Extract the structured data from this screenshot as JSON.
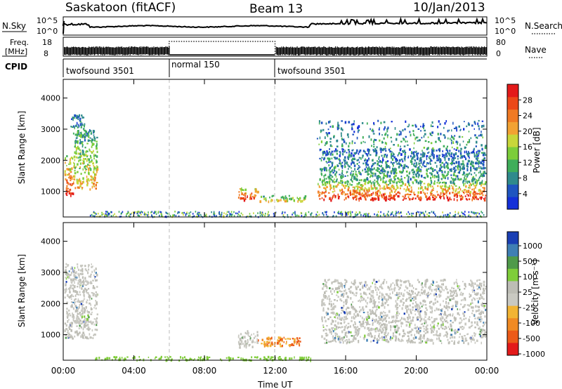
{
  "header": {
    "station": "Saskatoon (fitACF)",
    "beam": "Beam 13",
    "date": "10/Jan/2013"
  },
  "status_panels": {
    "nsky_label": "N.Sky",
    "nsky_ticks": [
      "10^5",
      "10^0"
    ],
    "nsearch_label": "N.Search",
    "nsearch_ticks": [
      "10^5",
      "10^0"
    ],
    "freq_label_line1": "Freq.",
    "freq_label_line2": "[MHz]",
    "freq_ticks": [
      "18",
      "8"
    ],
    "nave_label": "Nave",
    "nave_ticks": [
      "80",
      "0"
    ],
    "cpid_label": "CPID",
    "cpid_segments": [
      {
        "name": "twofsound 3501",
        "start": 0,
        "end": 6
      },
      {
        "name": "normal 150",
        "start": 6,
        "end": 12
      },
      {
        "name": "twofsound 3501",
        "start": 12,
        "end": 24
      }
    ]
  },
  "colors": {
    "power": [
      "#1430d8",
      "#1f55c0",
      "#2f8a8c",
      "#3fae5a",
      "#7ccd3a",
      "#c8d63a",
      "#f2a233",
      "#f07a23",
      "#ec4818",
      "#e31a1a"
    ],
    "velocity": [
      "#1a3fb4",
      "#3f7fb4",
      "#4f9a4a",
      "#7fcd3a",
      "#bdbdb5",
      "#c9c9c2",
      "#f2b433",
      "#f08a23",
      "#ec5a18",
      "#e31a1a"
    ]
  },
  "chart_data": [
    {
      "type": "heatmap",
      "name": "Power",
      "xlabel": "",
      "ylabel": "Slant Range [km]",
      "xlim": [
        0,
        24
      ],
      "ylim": [
        180,
        4600
      ],
      "y_ticks": [
        1000,
        2000,
        3000,
        4000
      ],
      "x_ticks": [
        0,
        4,
        8,
        12,
        16,
        20,
        24
      ],
      "colorbar": {
        "label": "Power [dB]",
        "range": [
          0,
          32
        ],
        "ticks": [
          "4",
          "8",
          "12",
          "16",
          "20",
          "24",
          "28"
        ]
      },
      "regions": [
        {
          "t_start": 0.05,
          "t_end": 0.6,
          "r_low": 900,
          "r_high": 2200,
          "level": "high"
        },
        {
          "t_start": 0.6,
          "t_end": 1.9,
          "r_low": 1100,
          "r_high": 3000,
          "level": "medium"
        },
        {
          "t_start": 0.4,
          "t_end": 1.2,
          "r_low": 2800,
          "r_high": 3500,
          "level": "low"
        },
        {
          "t_start": 9.9,
          "t_end": 11.0,
          "r_low": 750,
          "r_high": 1150,
          "level": "high"
        },
        {
          "t_start": 11.0,
          "t_end": 13.7,
          "r_low": 700,
          "r_high": 900,
          "level": "medium"
        },
        {
          "t_start": 14.4,
          "t_end": 23.9,
          "r_low": 750,
          "r_high": 1300,
          "level": "high"
        },
        {
          "t_start": 14.5,
          "t_end": 23.9,
          "r_low": 1300,
          "r_high": 2400,
          "level": "low"
        },
        {
          "t_start": 14.3,
          "t_end": 23.9,
          "r_low": 2400,
          "r_high": 3300,
          "level": "sparse"
        }
      ]
    },
    {
      "type": "heatmap",
      "name": "Velocity",
      "xlabel": "Time UT",
      "ylabel": "Slant Range [km]",
      "xlim": [
        0,
        24
      ],
      "ylim": [
        180,
        4600
      ],
      "y_ticks": [
        1000,
        2000,
        3000,
        4000
      ],
      "x_ticks": [
        0,
        4,
        8,
        12,
        16,
        20,
        24
      ],
      "x_tick_labels": [
        "00:00",
        "04:00",
        "08:00",
        "12:00",
        "16:00",
        "20:00",
        "00:00"
      ],
      "colorbar": {
        "label": "Velocity [m s⁻¹]",
        "ticks": [
          "1000",
          "500",
          "100",
          "25",
          "-25",
          "-100",
          "-500",
          "-1000"
        ]
      },
      "regions": [
        {
          "t_start": 0.05,
          "t_end": 1.9,
          "r_low": 900,
          "r_high": 3300,
          "level": "gray"
        },
        {
          "t_start": 9.9,
          "t_end": 11.0,
          "r_low": 600,
          "r_high": 1150,
          "level": "gray"
        },
        {
          "t_start": 11.0,
          "t_end": 13.4,
          "r_low": 650,
          "r_high": 950,
          "level": "orange"
        },
        {
          "t_start": 14.6,
          "t_end": 23.9,
          "r_low": 750,
          "r_high": 2800,
          "level": "gray"
        },
        {
          "t_start": 1.5,
          "t_end": 14.0,
          "r_low": 200,
          "r_high": 320,
          "level": "green"
        }
      ]
    }
  ],
  "time_axis_label": "Time UT"
}
